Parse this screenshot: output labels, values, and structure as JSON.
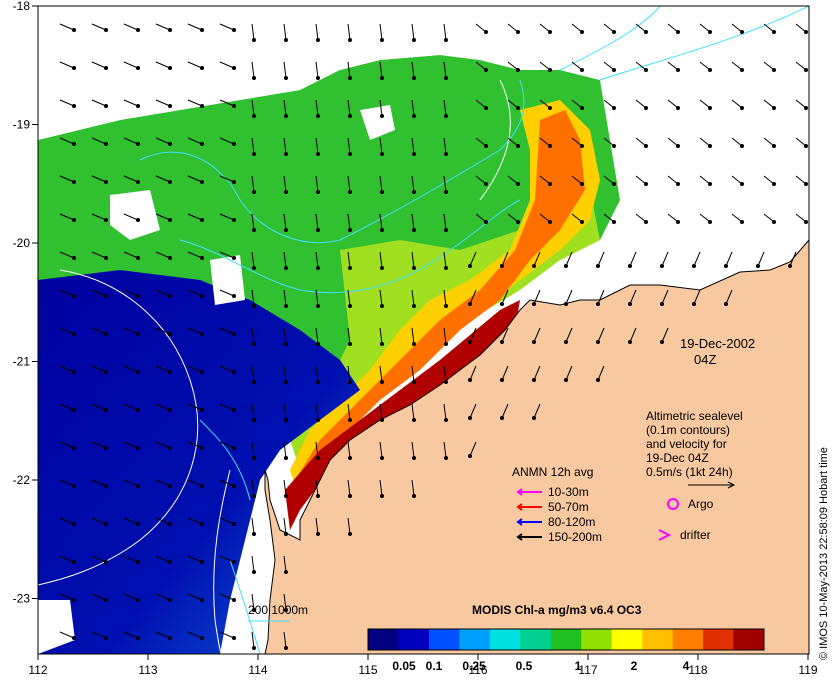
{
  "map": {
    "date_line1": "19-Dec-2002",
    "date_line2": "04Z",
    "credit": "© IMOS 10-May-2013 22:58:09 Hobart time",
    "x_ticks": [
      "112",
      "113",
      "114",
      "115",
      "116",
      "117",
      "118",
      "119"
    ],
    "y_ticks": [
      "-18",
      "-19",
      "-20",
      "-21",
      "-22",
      "-23"
    ],
    "altimetry_note": [
      "Altimetric sealevel",
      "(0.1m contours)",
      "and velocity for",
      "19-Dec 04Z"
    ],
    "scale_arrow_label": "0.5m/s (1kt 24h)",
    "bathy_label": "200  1000m",
    "legend": {
      "title": "ANMN 12h avg",
      "items": [
        {
          "label": "10-30m",
          "color": "#ff00ff"
        },
        {
          "label": "50-70m",
          "color": "#ff0000"
        },
        {
          "label": "80-120m",
          "color": "#0000ff"
        },
        {
          "label": "150-200m",
          "color": "#000000"
        }
      ],
      "argo_label": "Argo",
      "drifter_label": "drifter"
    },
    "colorbar": {
      "title": "MODIS Chl-a mg/m3 v6.4 OC3",
      "ticks": [
        "0.05",
        "0.1",
        "0.25",
        "0.5",
        "1",
        "2",
        "4"
      ],
      "colors": [
        "#000080",
        "#0000c0",
        "#0050ff",
        "#00a0ff",
        "#00e0e0",
        "#00d090",
        "#20c020",
        "#90e000",
        "#ffff00",
        "#ffc000",
        "#ff8000",
        "#e03000",
        "#a00000"
      ]
    },
    "colors": {
      "land": "#f8c8a0",
      "coast": "#000000",
      "contour": "#40e0ff"
    }
  }
}
